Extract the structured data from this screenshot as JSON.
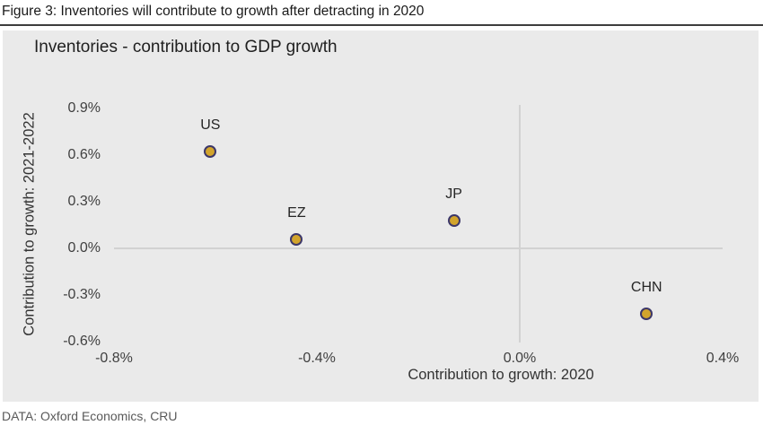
{
  "figure_caption": "Figure 3: Inventories will contribute to growth after detracting in 2020",
  "source_note": "DATA: Oxford Economics, CRU",
  "colors": {
    "panel_background": "#eaeaea",
    "zero_line": "#d2d2d2",
    "point_fill": "#d2a42c",
    "point_border": "#3c3769",
    "caption_text": "#1a1a1a",
    "axis_text": "#404040",
    "source_text": "#595959"
  },
  "chart_data": {
    "type": "scatter",
    "title": "Inventories - contribution to GDP growth",
    "xlabel": "Contribution to growth: 2020",
    "ylabel": "Contribution to growth: 2021-2022",
    "xlim": [
      -0.8,
      0.4
    ],
    "ylim": [
      -0.604,
      0.921
    ],
    "x_tick_labels": [
      "-0.8%",
      "-0.4%",
      "0.0%",
      "0.4%"
    ],
    "x_tick_values": [
      -0.8,
      -0.4,
      0.0,
      0.4
    ],
    "y_tick_labels": [
      "0.9%",
      "0.6%",
      "0.3%",
      "0.0%",
      "-0.3%",
      "-0.6%"
    ],
    "y_tick_values": [
      0.9,
      0.6,
      0.3,
      0.0,
      -0.3,
      -0.6
    ],
    "grid": "zero-axis-lines-only",
    "legend": "none",
    "units": "percent contribution to GDP growth",
    "points": [
      {
        "label": "US",
        "x": -0.61,
        "y": 0.62
      },
      {
        "label": "EZ",
        "x": -0.44,
        "y": 0.06
      },
      {
        "label": "JP",
        "x": -0.13,
        "y": 0.18
      },
      {
        "label": "CHN",
        "x": 0.25,
        "y": -0.42
      }
    ]
  }
}
